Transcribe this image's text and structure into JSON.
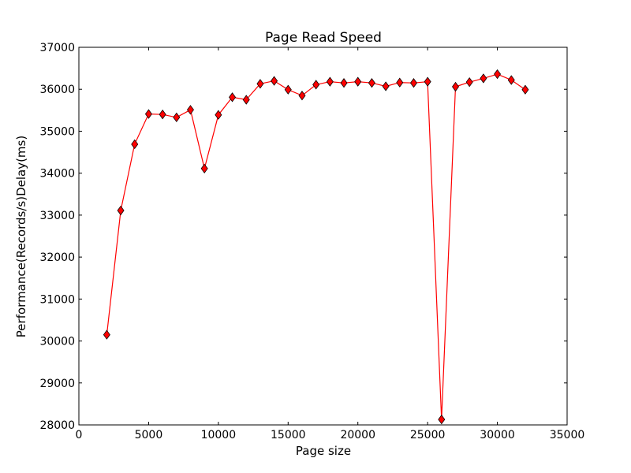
{
  "chart_data": {
    "type": "line",
    "title": "Page Read Speed",
    "xlabel": "Page size",
    "ylabel": "Performance(Records/s)Delay(ms)",
    "xlim": [
      0,
      35000
    ],
    "ylim": [
      28000,
      37000
    ],
    "xticks": [
      0,
      5000,
      10000,
      15000,
      20000,
      25000,
      30000,
      35000
    ],
    "yticks": [
      28000,
      29000,
      30000,
      31000,
      32000,
      33000,
      34000,
      35000,
      36000,
      37000
    ],
    "grid": false,
    "legend": "none",
    "series": [
      {
        "color": "#ff0000",
        "marker": "diamond",
        "x": [
          2000,
          3000,
          4000,
          5000,
          6000,
          7000,
          8000,
          9000,
          10000,
          11000,
          12000,
          13000,
          14000,
          15000,
          16000,
          17000,
          18000,
          19000,
          20000,
          21000,
          22000,
          23000,
          24000,
          25000,
          26000,
          27000,
          28000,
          29000,
          30000,
          31000,
          32000
        ],
        "y": [
          30150,
          33110,
          34690,
          35410,
          35400,
          35330,
          35510,
          34110,
          35390,
          35810,
          35750,
          36130,
          36200,
          35990,
          35850,
          36110,
          36180,
          36150,
          36180,
          36150,
          36070,
          36160,
          36150,
          36180,
          28130,
          36060,
          36170,
          36260,
          36360,
          36220,
          35990
        ]
      }
    ]
  }
}
